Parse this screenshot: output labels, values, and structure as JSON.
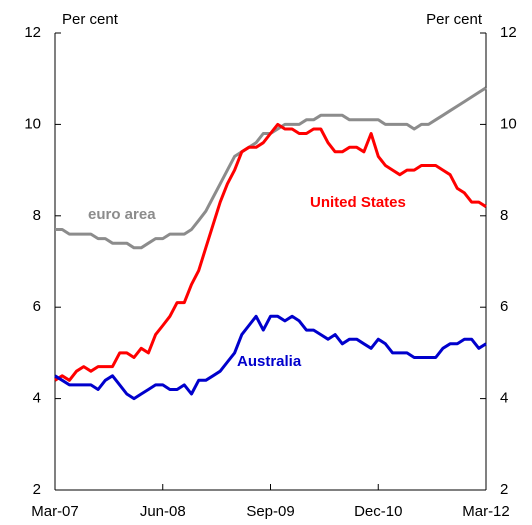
{
  "chart_data": {
    "type": "line",
    "y_label": "Per cent",
    "y2_label": "Per cent",
    "categories": [
      "Mar-07",
      null,
      null,
      null,
      null,
      null,
      null,
      null,
      null,
      null,
      null,
      null,
      null,
      null,
      null,
      "Jun-08",
      null,
      null,
      null,
      null,
      null,
      null,
      null,
      null,
      null,
      null,
      null,
      null,
      null,
      null,
      "Sep-09",
      null,
      null,
      null,
      null,
      null,
      null,
      null,
      null,
      null,
      null,
      null,
      null,
      null,
      null,
      "Dec-10",
      null,
      null,
      null,
      null,
      null,
      null,
      null,
      null,
      null,
      null,
      null,
      null,
      null,
      null,
      "Mar-12"
    ],
    "series": [
      {
        "name": "euro area",
        "color": "#8c8c8c",
        "values": [
          7.7,
          7.7,
          7.6,
          7.6,
          7.6,
          7.6,
          7.5,
          7.5,
          7.4,
          7.4,
          7.4,
          7.3,
          7.3,
          7.4,
          7.5,
          7.5,
          7.6,
          7.6,
          7.6,
          7.7,
          7.9,
          8.1,
          8.4,
          8.7,
          9.0,
          9.3,
          9.4,
          9.5,
          9.6,
          9.8,
          9.8,
          9.9,
          10.0,
          10.0,
          10.0,
          10.1,
          10.1,
          10.2,
          10.2,
          10.2,
          10.2,
          10.1,
          10.1,
          10.1,
          10.1,
          10.1,
          10.0,
          10.0,
          10.0,
          10.0,
          9.9,
          10.0,
          10.0,
          10.1,
          10.2,
          10.3,
          10.4,
          10.5,
          10.6,
          10.7,
          10.8
        ]
      },
      {
        "name": "United States",
        "color": "#ff0000",
        "values": [
          4.4,
          4.5,
          4.4,
          4.6,
          4.7,
          4.6,
          4.7,
          4.7,
          4.7,
          5.0,
          5.0,
          4.9,
          5.1,
          5.0,
          5.4,
          5.6,
          5.8,
          6.1,
          6.1,
          6.5,
          6.8,
          7.3,
          7.8,
          8.3,
          8.7,
          9.0,
          9.4,
          9.5,
          9.5,
          9.6,
          9.8,
          10.0,
          9.9,
          9.9,
          9.8,
          9.8,
          9.9,
          9.9,
          9.6,
          9.4,
          9.4,
          9.5,
          9.5,
          9.4,
          9.8,
          9.3,
          9.1,
          9.0,
          8.9,
          9.0,
          9.0,
          9.1,
          9.1,
          9.1,
          9.0,
          8.9,
          8.6,
          8.5,
          8.3,
          8.3,
          8.2
        ]
      },
      {
        "name": "Australia",
        "color": "#0000cc",
        "values": [
          4.5,
          4.4,
          4.3,
          4.3,
          4.3,
          4.3,
          4.2,
          4.4,
          4.5,
          4.3,
          4.1,
          4.0,
          4.1,
          4.2,
          4.3,
          4.3,
          4.2,
          4.2,
          4.3,
          4.1,
          4.4,
          4.4,
          4.5,
          4.6,
          4.8,
          5.0,
          5.4,
          5.6,
          5.8,
          5.5,
          5.8,
          5.8,
          5.7,
          5.8,
          5.7,
          5.5,
          5.5,
          5.4,
          5.3,
          5.4,
          5.2,
          5.3,
          5.3,
          5.2,
          5.1,
          5.3,
          5.2,
          5.0,
          5.0,
          5.0,
          4.9,
          4.9,
          4.9,
          4.9,
          5.1,
          5.2,
          5.2,
          5.3,
          5.3,
          5.1,
          5.2
        ]
      }
    ],
    "ylim": [
      2,
      12
    ],
    "yticks": [
      2,
      4,
      6,
      8,
      10,
      12
    ],
    "y2lim": [
      2,
      12
    ],
    "y2ticks": [
      2,
      4,
      6,
      8,
      10,
      12
    ]
  }
}
